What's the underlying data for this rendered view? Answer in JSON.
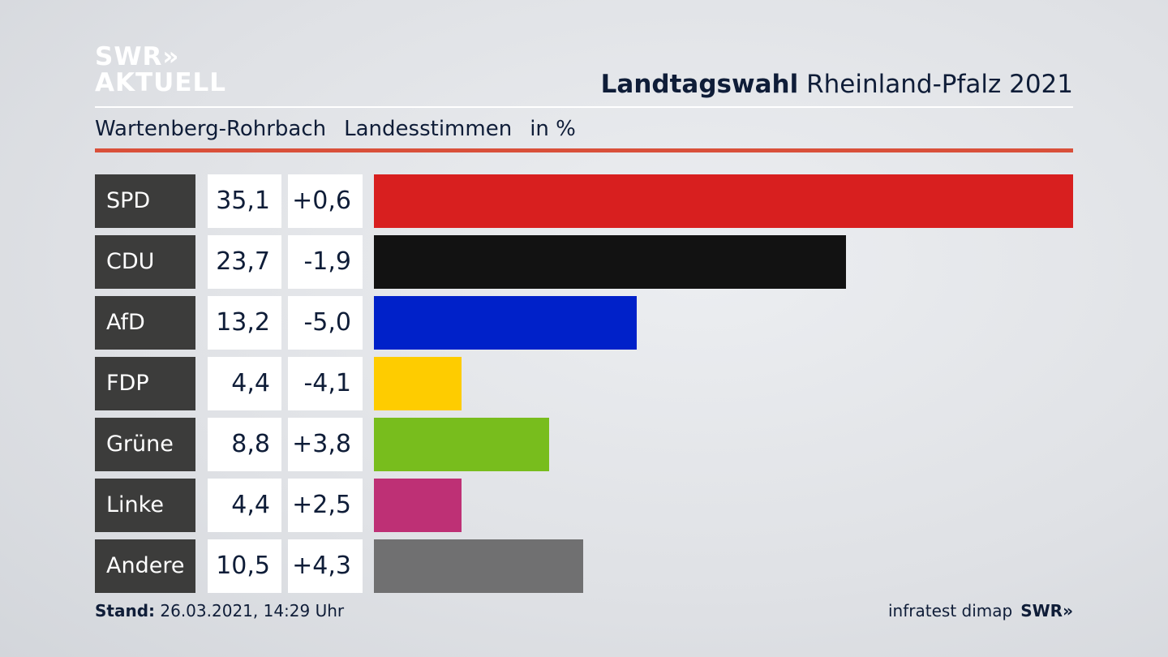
{
  "logo": {
    "line1": "SWR»",
    "line2": "AKTUELL"
  },
  "header": {
    "title_bold": "Landtagswahl",
    "title_rest": "Rheinland-Pfalz 2021"
  },
  "subtitle": {
    "constituency": "Wartenberg-Rohrbach",
    "type": "Landesstimmen",
    "unit": "in %"
  },
  "footer": {
    "stand_label": "Stand:",
    "stand_value": "26.03.2021, 14:29 Uhr",
    "source": "infratest dimap",
    "brand": "SWR»"
  },
  "chart_data": {
    "type": "bar",
    "title": "Landtagswahl Rheinland-Pfalz 2021 – Wartenberg-Rohrbach, Landesstimmen in %",
    "categories": [
      "SPD",
      "CDU",
      "AfD",
      "FDP",
      "Grüne",
      "Linke",
      "Andere"
    ],
    "values": [
      35.1,
      23.7,
      13.2,
      4.4,
      8.8,
      4.4,
      10.5
    ],
    "value_labels": [
      "35,1",
      "23,7",
      "13,2",
      "4,4",
      "8,8",
      "4,4",
      "10,5"
    ],
    "diff_labels": [
      "+0,6",
      "-1,9",
      "-5,0",
      "-4,1",
      "+3,8",
      "+2,5",
      "+4,3"
    ],
    "diffs": [
      0.6,
      -1.9,
      -5.0,
      -4.1,
      3.8,
      2.5,
      4.3
    ],
    "colors": [
      "#d81f1f",
      "#121212",
      "#0021c9",
      "#fecc00",
      "#78bd1d",
      "#be3075",
      "#707071"
    ],
    "xlim": [
      0,
      35.1
    ],
    "orientation": "horizontal"
  }
}
